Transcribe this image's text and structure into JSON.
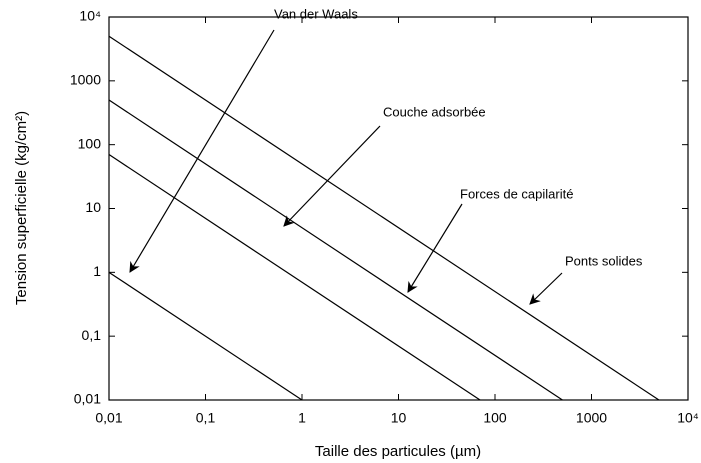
{
  "chart_data": {
    "type": "line",
    "xlabel": "Taille des particules (µm)",
    "ylabel": "Tension superficielle (kg/cm²)",
    "xlog": true,
    "ylog": true,
    "xlim": [
      0.01,
      10000
    ],
    "ylim": [
      0.01,
      10000
    ],
    "xticks": [
      {
        "value": 0.01,
        "label": "0,01"
      },
      {
        "value": 0.1,
        "label": "0,1"
      },
      1,
      10,
      100,
      1000,
      {
        "value": 10000,
        "label": "10⁴"
      }
    ],
    "yticks": [
      {
        "value": 0.01,
        "label": "0,01"
      },
      {
        "value": 0.1,
        "label": "0,1"
      },
      1,
      10,
      100,
      1000,
      {
        "value": 10000,
        "label": "10⁴"
      }
    ],
    "color": "#000000",
    "series": [
      {
        "name": "Van der Waals",
        "x": [
          0.01,
          1
        ],
        "values": [
          1,
          0.01
        ]
      },
      {
        "name": "Couche adsorbée",
        "x": [
          0.01,
          70
        ],
        "values": [
          70,
          0.01
        ]
      },
      {
        "name": "Forces de capilarité",
        "x": [
          0.01,
          500
        ],
        "values": [
          500,
          0.01
        ]
      },
      {
        "name": "Ponts solides",
        "x": [
          0.01,
          5000
        ],
        "values": [
          5000,
          0.01
        ]
      }
    ]
  }
}
